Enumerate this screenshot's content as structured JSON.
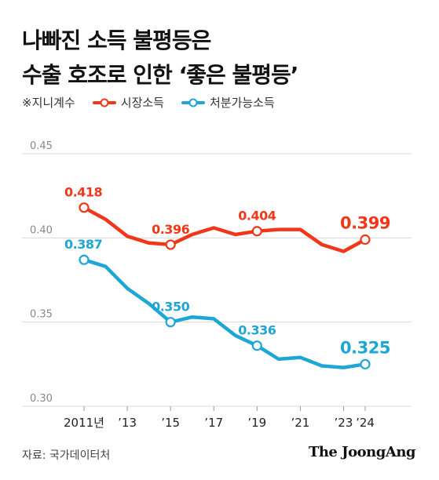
{
  "header": {
    "title_line1": "나빠진 소득 불평등은",
    "title_line2": "수출 호조로 인한 ‘좋은 불평등’"
  },
  "legend": {
    "note": "※지니계수",
    "market_label": "시장소득",
    "disposable_label": "처분가능소득"
  },
  "footer": {
    "source": "자료: 국가데이터처",
    "brand": "The JoongAng"
  },
  "colors": {
    "market": "#f0371a",
    "disposable": "#1ea7d6",
    "grid": "#d9d9d9",
    "axis_text": "#888888"
  },
  "chart_data": {
    "type": "line",
    "title": "",
    "xlabel": "",
    "ylabel": "",
    "x": [
      2011,
      2012,
      2013,
      2014,
      2015,
      2016,
      2017,
      2018,
      2019,
      2020,
      2021,
      2022,
      2023,
      2024
    ],
    "xtick_labels": [
      {
        "x": 2011,
        "label": "2011년"
      },
      {
        "x": 2013,
        "label": "’13"
      },
      {
        "x": 2015,
        "label": "’15"
      },
      {
        "x": 2017,
        "label": "’17"
      },
      {
        "x": 2019,
        "label": "’19"
      },
      {
        "x": 2021,
        "label": "’21"
      },
      {
        "x": 2023,
        "label": "’23"
      },
      {
        "x": 2024,
        "label": "’24"
      }
    ],
    "ylim": [
      0.3,
      0.45
    ],
    "yticks": [
      {
        "value": 0.3,
        "label": "0.30"
      },
      {
        "value": 0.35,
        "label": "0.35"
      },
      {
        "value": 0.4,
        "label": "0.40"
      },
      {
        "value": 0.45,
        "label": "0.45"
      }
    ],
    "grid": true,
    "series": [
      {
        "name": "시장소득",
        "values": [
          0.418,
          0.411,
          0.401,
          0.397,
          0.396,
          0.402,
          0.406,
          0.402,
          0.404,
          0.405,
          0.405,
          0.396,
          0.392,
          0.399
        ],
        "highlights": [
          {
            "x": 2011,
            "label": "0.418"
          },
          {
            "x": 2015,
            "label": "0.396"
          },
          {
            "x": 2019,
            "label": "0.404"
          },
          {
            "x": 2024,
            "label": "0.399"
          }
        ]
      },
      {
        "name": "처분가능소득",
        "values": [
          0.387,
          0.383,
          0.37,
          0.361,
          0.35,
          0.353,
          0.352,
          0.342,
          0.336,
          0.328,
          0.329,
          0.324,
          0.323,
          0.325
        ],
        "highlights": [
          {
            "x": 2011,
            "label": "0.387"
          },
          {
            "x": 2015,
            "label": "0.350"
          },
          {
            "x": 2019,
            "label": "0.336"
          },
          {
            "x": 2024,
            "label": "0.325"
          }
        ]
      }
    ]
  }
}
